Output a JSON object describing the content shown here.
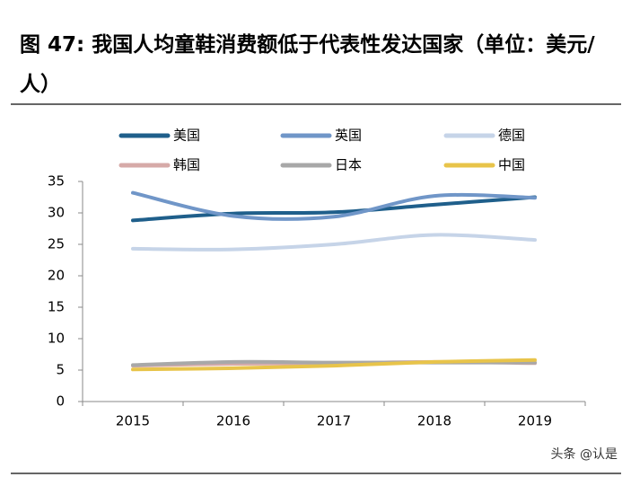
{
  "chart_data": {
    "type": "line",
    "title": "图 47: 我国人均童鞋消费额低于代表性发达国家（单位：美元/人）",
    "categories": [
      "2015",
      "2016",
      "2017",
      "2018",
      "2019"
    ],
    "series": [
      {
        "name": "美国",
        "color": "#1f5f8b",
        "values": [
          28.8,
          29.9,
          30.1,
          31.3,
          32.5
        ]
      },
      {
        "name": "英国",
        "color": "#7096c8",
        "values": [
          33.2,
          29.5,
          29.4,
          32.7,
          32.4
        ]
      },
      {
        "name": "德国",
        "color": "#c6d4e8",
        "values": [
          24.3,
          24.2,
          25.0,
          26.5,
          25.7
        ]
      },
      {
        "name": "韩国",
        "color": "#d6aaa8",
        "values": [
          5.7,
          6.0,
          6.1,
          6.3,
          6.1
        ]
      },
      {
        "name": "日本",
        "color": "#a8a8a8",
        "values": [
          5.8,
          6.3,
          6.2,
          6.2,
          6.2
        ]
      },
      {
        "name": "中国",
        "color": "#e8c44a",
        "values": [
          5.1,
          5.3,
          5.7,
          6.3,
          6.6
        ]
      }
    ],
    "ylim": [
      0,
      35
    ],
    "yticks": [
      0,
      5,
      10,
      15,
      20,
      25,
      30,
      35
    ],
    "watermark": "头条 @认是"
  }
}
